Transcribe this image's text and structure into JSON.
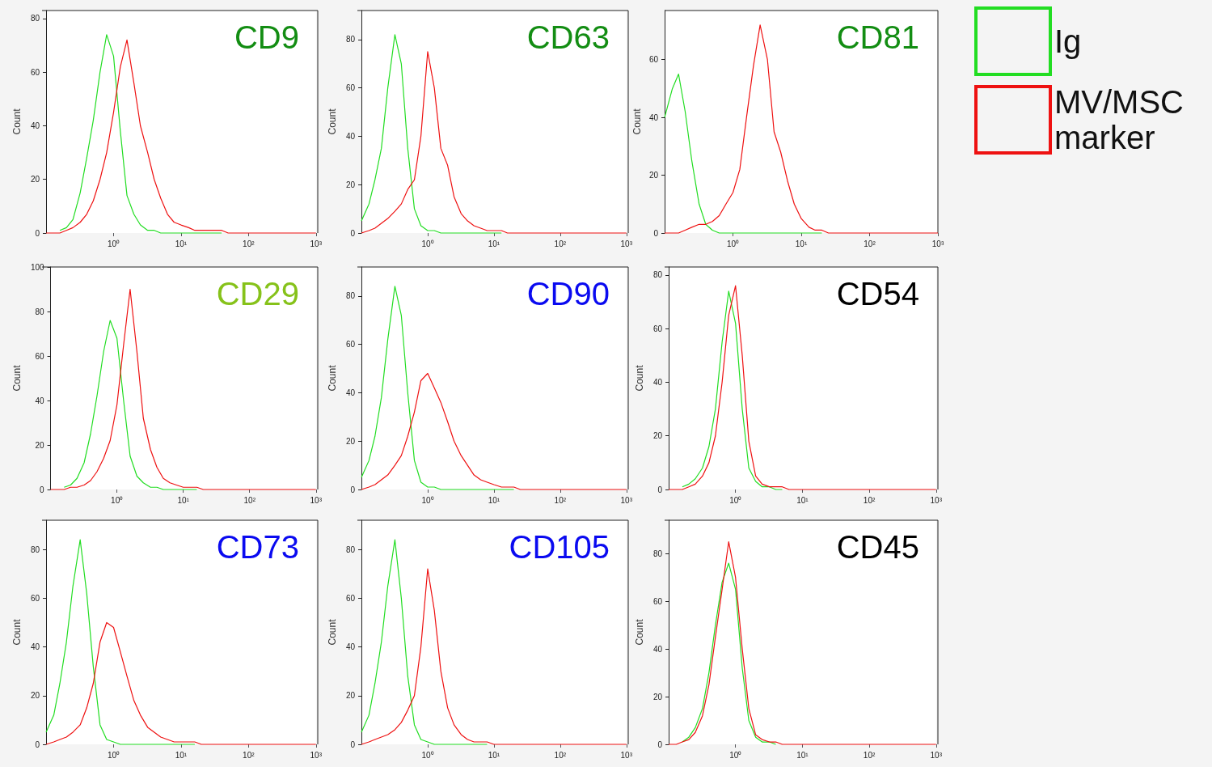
{
  "chart_data": [
    {
      "type": "line",
      "title": "CD9",
      "ylabel": "Count",
      "log": "x",
      "xlim": [
        0.1,
        1000
      ],
      "xticks": [
        {
          "value": 1,
          "label": "10⁰"
        },
        {
          "value": 10,
          "label": "10¹"
        },
        {
          "value": 100,
          "label": "10²"
        },
        {
          "value": 1000,
          "label": "10³"
        }
      ],
      "ylim": [
        0,
        83
      ],
      "yticks": [
        0,
        20,
        40,
        60,
        80
      ],
      "grid": false,
      "marker": "none",
      "x": [
        0.1,
        0.13,
        0.16,
        0.2,
        0.25,
        0.32,
        0.4,
        0.5,
        0.63,
        0.79,
        1,
        1.26,
        1.58,
        2,
        2.5,
        3.2,
        4,
        5,
        6.3,
        7.9,
        10,
        13,
        16,
        20,
        25,
        32,
        40,
        50,
        63,
        79,
        100,
        158,
        251,
        398,
        631,
        1000
      ],
      "series": [
        {
          "color": "#22dd22",
          "values": [
            null,
            null,
            1,
            2,
            5,
            15,
            28,
            42,
            60,
            74,
            66,
            38,
            14,
            7,
            3,
            1,
            1,
            0,
            0,
            0,
            0,
            0,
            0,
            0,
            0,
            0,
            0,
            null,
            null,
            null,
            null,
            null,
            null,
            null,
            null,
            null
          ]
        },
        {
          "color": "#ee1111",
          "values": [
            0,
            0,
            0,
            1,
            2,
            4,
            7,
            12,
            20,
            30,
            45,
            62,
            72,
            56,
            40,
            30,
            20,
            13,
            7,
            4,
            3,
            2,
            1,
            1,
            1,
            1,
            1,
            0,
            0,
            0,
            0,
            0,
            0,
            0,
            0,
            0
          ]
        }
      ]
    },
    {
      "type": "line",
      "title": "CD63",
      "ylabel": "Count",
      "log": "x",
      "xlim": [
        0.1,
        1000
      ],
      "xticks": [
        {
          "value": 1,
          "label": "10⁰"
        },
        {
          "value": 10,
          "label": "10¹"
        },
        {
          "value": 100,
          "label": "10²"
        },
        {
          "value": 1000,
          "label": "10³"
        }
      ],
      "ylim": [
        0,
        92
      ],
      "yticks": [
        0,
        20,
        40,
        60,
        80
      ],
      "grid": false,
      "marker": "none",
      "x": [
        0.1,
        0.13,
        0.16,
        0.2,
        0.25,
        0.32,
        0.4,
        0.5,
        0.63,
        0.79,
        1,
        1.26,
        1.58,
        2,
        2.5,
        3.2,
        4,
        5,
        6.3,
        7.9,
        10,
        13,
        16,
        20,
        25,
        32,
        40,
        50,
        63,
        79,
        100,
        158,
        251,
        398,
        631,
        1000
      ],
      "series": [
        {
          "color": "#22dd22",
          "values": [
            5,
            12,
            22,
            35,
            60,
            82,
            70,
            35,
            10,
            3,
            1,
            1,
            0,
            0,
            0,
            0,
            0,
            0,
            0,
            0,
            0,
            0,
            null,
            null,
            null,
            null,
            null,
            null,
            null,
            null,
            null,
            null,
            null,
            null,
            null,
            null
          ]
        },
        {
          "color": "#ee1111",
          "values": [
            0,
            1,
            2,
            4,
            6,
            9,
            12,
            18,
            22,
            40,
            75,
            60,
            35,
            28,
            15,
            8,
            5,
            3,
            2,
            1,
            1,
            1,
            0,
            0,
            0,
            0,
            0,
            0,
            0,
            0,
            0,
            0,
            0,
            0,
            0,
            0
          ]
        }
      ]
    },
    {
      "type": "line",
      "title": "CD81",
      "ylabel": "Count",
      "log": "x",
      "legend": "right",
      "xlim": [
        0.1,
        1000
      ],
      "xticks": [
        {
          "value": 1,
          "label": "10⁰"
        },
        {
          "value": 10,
          "label": "10¹"
        },
        {
          "value": 100,
          "label": "10²"
        },
        {
          "value": 1000,
          "label": "10³"
        }
      ],
      "ylim": [
        0,
        77
      ],
      "yticks": [
        0,
        20,
        40,
        60
      ],
      "grid": false,
      "marker": "none",
      "x": [
        0.1,
        0.13,
        0.16,
        0.2,
        0.25,
        0.32,
        0.4,
        0.5,
        0.63,
        0.79,
        1,
        1.26,
        1.58,
        2,
        2.5,
        3.2,
        4,
        5,
        6.3,
        7.9,
        10,
        13,
        16,
        20,
        25,
        32,
        40,
        50,
        63,
        79,
        100,
        158,
        251,
        398,
        631,
        1000
      ],
      "series": [
        {
          "name": "Ig",
          "color": "#22dd22",
          "values": [
            40,
            50,
            55,
            42,
            25,
            10,
            3,
            1,
            0,
            0,
            0,
            0,
            0,
            0,
            0,
            0,
            0,
            0,
            0,
            0,
            0,
            0,
            0,
            0,
            null,
            null,
            null,
            null,
            null,
            null,
            null,
            null,
            null,
            null,
            null,
            null
          ]
        },
        {
          "name": "MV/MSC marker",
          "color": "#ee1111",
          "values": [
            0,
            0,
            0,
            1,
            2,
            3,
            3,
            4,
            6,
            10,
            14,
            22,
            40,
            58,
            72,
            60,
            35,
            28,
            18,
            10,
            5,
            2,
            1,
            1,
            0,
            0,
            0,
            0,
            0,
            0,
            0,
            0,
            0,
            0,
            0,
            0
          ]
        }
      ]
    },
    {
      "type": "line",
      "title": "CD29",
      "ylabel": "Count",
      "log": "x",
      "xlim": [
        0.1,
        1000
      ],
      "xticks": [
        {
          "value": 1,
          "label": "10⁰"
        },
        {
          "value": 10,
          "label": "10¹"
        },
        {
          "value": 100,
          "label": "10²"
        },
        {
          "value": 1000,
          "label": "10³"
        }
      ],
      "ylim": [
        0,
        100
      ],
      "yticks": [
        0,
        20,
        40,
        60,
        80,
        100
      ],
      "grid": false,
      "marker": "none",
      "x": [
        0.1,
        0.13,
        0.16,
        0.2,
        0.25,
        0.32,
        0.4,
        0.5,
        0.63,
        0.79,
        1,
        1.26,
        1.58,
        2,
        2.5,
        3.2,
        4,
        5,
        6.3,
        7.9,
        10,
        13,
        16,
        20,
        25,
        32,
        40,
        50,
        63,
        79,
        100,
        158,
        251,
        398,
        631,
        1000
      ],
      "series": [
        {
          "color": "#22dd22",
          "values": [
            null,
            null,
            1,
            2,
            5,
            12,
            25,
            42,
            62,
            76,
            68,
            40,
            15,
            6,
            3,
            1,
            1,
            0,
            0,
            0,
            0,
            0,
            0,
            null,
            null,
            null,
            null,
            null,
            null,
            null,
            null,
            null,
            null,
            null,
            null,
            null
          ]
        },
        {
          "color": "#ee1111",
          "values": [
            0,
            0,
            0,
            1,
            1,
            2,
            4,
            8,
            14,
            22,
            38,
            65,
            90,
            62,
            32,
            18,
            10,
            5,
            3,
            2,
            1,
            1,
            1,
            0,
            0,
            0,
            0,
            0,
            0,
            0,
            0,
            0,
            0,
            0,
            0,
            0
          ]
        }
      ]
    },
    {
      "type": "line",
      "title": "CD90",
      "ylabel": "Count",
      "log": "x",
      "xlim": [
        0.1,
        1000
      ],
      "xticks": [
        {
          "value": 1,
          "label": "10⁰"
        },
        {
          "value": 10,
          "label": "10¹"
        },
        {
          "value": 100,
          "label": "10²"
        },
        {
          "value": 1000,
          "label": "10³"
        }
      ],
      "ylim": [
        0,
        92
      ],
      "yticks": [
        0,
        20,
        40,
        60,
        80
      ],
      "grid": false,
      "marker": "none",
      "x": [
        0.1,
        0.13,
        0.16,
        0.2,
        0.25,
        0.32,
        0.4,
        0.5,
        0.63,
        0.79,
        1,
        1.26,
        1.58,
        2,
        2.5,
        3.2,
        4,
        5,
        6.3,
        7.9,
        10,
        13,
        16,
        20,
        25,
        32,
        40,
        50,
        63,
        79,
        100,
        158,
        251,
        398,
        631,
        1000
      ],
      "series": [
        {
          "color": "#22dd22",
          "values": [
            5,
            12,
            22,
            38,
            62,
            84,
            72,
            40,
            12,
            3,
            1,
            1,
            0,
            0,
            0,
            0,
            0,
            0,
            0,
            0,
            0,
            0,
            0,
            0,
            null,
            null,
            null,
            null,
            null,
            null,
            null,
            null,
            null,
            null,
            null,
            null
          ]
        },
        {
          "color": "#ee1111",
          "values": [
            0,
            1,
            2,
            4,
            6,
            10,
            14,
            22,
            32,
            45,
            48,
            42,
            36,
            28,
            20,
            14,
            10,
            6,
            4,
            3,
            2,
            1,
            1,
            1,
            0,
            0,
            0,
            0,
            0,
            0,
            0,
            0,
            0,
            0,
            0,
            0
          ]
        }
      ]
    },
    {
      "type": "line",
      "title": "CD54",
      "ylabel": "Count",
      "log": "x",
      "xlim": [
        0.1,
        1000
      ],
      "xticks": [
        {
          "value": 1,
          "label": "10⁰"
        },
        {
          "value": 10,
          "label": "10¹"
        },
        {
          "value": 100,
          "label": "10²"
        },
        {
          "value": 1000,
          "label": "10³"
        }
      ],
      "ylim": [
        0,
        83
      ],
      "yticks": [
        0,
        20,
        40,
        60,
        80
      ],
      "grid": false,
      "marker": "none",
      "x": [
        0.1,
        0.13,
        0.16,
        0.2,
        0.25,
        0.32,
        0.4,
        0.5,
        0.63,
        0.79,
        1,
        1.26,
        1.58,
        2,
        2.5,
        3.2,
        4,
        5,
        6.3,
        7.9,
        10,
        13,
        16,
        20,
        25,
        32,
        40,
        50,
        63,
        79,
        100,
        158,
        251,
        398,
        631,
        1000
      ],
      "series": [
        {
          "color": "#22dd22",
          "values": [
            null,
            null,
            1,
            2,
            4,
            8,
            16,
            30,
            55,
            74,
            62,
            30,
            8,
            3,
            1,
            1,
            0,
            0,
            null,
            null,
            null,
            null,
            null,
            null,
            null,
            null,
            null,
            null,
            null,
            null,
            null,
            null,
            null,
            null,
            null,
            null
          ]
        },
        {
          "color": "#ee1111",
          "values": [
            0,
            0,
            0,
            1,
            2,
            5,
            10,
            20,
            40,
            65,
            76,
            50,
            18,
            5,
            2,
            1,
            1,
            1,
            0,
            0,
            0,
            0,
            0,
            0,
            0,
            0,
            0,
            0,
            0,
            0,
            0,
            0,
            0,
            0,
            0,
            0
          ]
        }
      ]
    },
    {
      "type": "line",
      "title": "CD73",
      "ylabel": "Count",
      "log": "x",
      "xlim": [
        0.1,
        1000
      ],
      "xticks": [
        {
          "value": 1,
          "label": "10⁰"
        },
        {
          "value": 10,
          "label": "10¹"
        },
        {
          "value": 100,
          "label": "10²"
        },
        {
          "value": 1000,
          "label": "10³"
        }
      ],
      "ylim": [
        0,
        92
      ],
      "yticks": [
        0,
        20,
        40,
        60,
        80
      ],
      "grid": false,
      "marker": "none",
      "x": [
        0.1,
        0.13,
        0.16,
        0.2,
        0.25,
        0.32,
        0.4,
        0.5,
        0.63,
        0.79,
        1,
        1.26,
        1.58,
        2,
        2.5,
        3.2,
        4,
        5,
        6.3,
        7.9,
        10,
        13,
        16,
        20,
        25,
        32,
        40,
        50,
        63,
        79,
        100,
        158,
        251,
        398,
        631,
        1000
      ],
      "series": [
        {
          "color": "#22dd22",
          "values": [
            5,
            12,
            25,
            42,
            65,
            84,
            62,
            32,
            8,
            2,
            1,
            0,
            0,
            0,
            0,
            0,
            0,
            0,
            0,
            0,
            0,
            0,
            0,
            null,
            null,
            null,
            null,
            null,
            null,
            null,
            null,
            null,
            null,
            null,
            null,
            null
          ]
        },
        {
          "color": "#ee1111",
          "values": [
            0,
            1,
            2,
            3,
            5,
            8,
            15,
            25,
            42,
            50,
            48,
            38,
            28,
            18,
            12,
            7,
            5,
            3,
            2,
            1,
            1,
            1,
            1,
            0,
            0,
            0,
            0,
            0,
            0,
            0,
            0,
            0,
            0,
            0,
            0,
            0
          ]
        }
      ]
    },
    {
      "type": "line",
      "title": "CD105",
      "ylabel": "Count",
      "log": "x",
      "xlim": [
        0.1,
        1000
      ],
      "xticks": [
        {
          "value": 1,
          "label": "10⁰"
        },
        {
          "value": 10,
          "label": "10¹"
        },
        {
          "value": 100,
          "label": "10²"
        },
        {
          "value": 1000,
          "label": "10³"
        }
      ],
      "ylim": [
        0,
        92
      ],
      "yticks": [
        0,
        20,
        40,
        60,
        80
      ],
      "grid": false,
      "marker": "none",
      "x": [
        0.1,
        0.13,
        0.16,
        0.2,
        0.25,
        0.32,
        0.4,
        0.5,
        0.63,
        0.79,
        1,
        1.26,
        1.58,
        2,
        2.5,
        3.2,
        4,
        5,
        6.3,
        7.9,
        10,
        13,
        16,
        20,
        25,
        32,
        40,
        50,
        63,
        79,
        100,
        158,
        251,
        398,
        631,
        1000
      ],
      "series": [
        {
          "color": "#22dd22",
          "values": [
            5,
            12,
            25,
            42,
            65,
            84,
            60,
            28,
            8,
            2,
            1,
            0,
            0,
            0,
            0,
            0,
            0,
            0,
            0,
            0,
            null,
            null,
            null,
            null,
            null,
            null,
            null,
            null,
            null,
            null,
            null,
            null,
            null,
            null,
            null,
            null
          ]
        },
        {
          "color": "#ee1111",
          "values": [
            0,
            1,
            2,
            3,
            4,
            6,
            9,
            14,
            20,
            40,
            72,
            55,
            30,
            15,
            8,
            4,
            2,
            1,
            1,
            1,
            0,
            0,
            0,
            0,
            0,
            0,
            0,
            0,
            0,
            0,
            0,
            0,
            0,
            0,
            0,
            0
          ]
        }
      ]
    },
    {
      "type": "line",
      "title": "CD45",
      "ylabel": "Count",
      "log": "x",
      "xlim": [
        0.1,
        1000
      ],
      "xticks": [
        {
          "value": 1,
          "label": "10⁰"
        },
        {
          "value": 10,
          "label": "10¹"
        },
        {
          "value": 100,
          "label": "10²"
        },
        {
          "value": 1000,
          "label": "10³"
        }
      ],
      "ylim": [
        0,
        94
      ],
      "yticks": [
        0,
        20,
        40,
        60,
        80
      ],
      "grid": false,
      "marker": "none",
      "x": [
        0.1,
        0.13,
        0.16,
        0.2,
        0.25,
        0.32,
        0.4,
        0.5,
        0.63,
        0.79,
        1,
        1.26,
        1.58,
        2,
        2.5,
        3.2,
        4,
        5,
        6.3,
        7.9,
        10,
        13,
        16,
        20,
        25,
        32,
        40,
        50,
        63,
        79,
        100,
        158,
        251,
        398,
        631,
        1000
      ],
      "series": [
        {
          "color": "#22dd22",
          "values": [
            null,
            null,
            1,
            3,
            7,
            15,
            30,
            50,
            68,
            76,
            65,
            32,
            10,
            3,
            1,
            1,
            0,
            null,
            null,
            null,
            null,
            null,
            null,
            null,
            null,
            null,
            null,
            null,
            null,
            null,
            null,
            null,
            null,
            null,
            null,
            null
          ]
        },
        {
          "color": "#ee1111",
          "values": [
            0,
            0,
            1,
            2,
            5,
            12,
            25,
            45,
            65,
            85,
            70,
            40,
            15,
            4,
            2,
            1,
            1,
            0,
            0,
            0,
            0,
            0,
            0,
            0,
            0,
            0,
            0,
            0,
            0,
            0,
            0,
            0,
            0,
            0,
            0,
            0
          ]
        }
      ]
    }
  ]
}
